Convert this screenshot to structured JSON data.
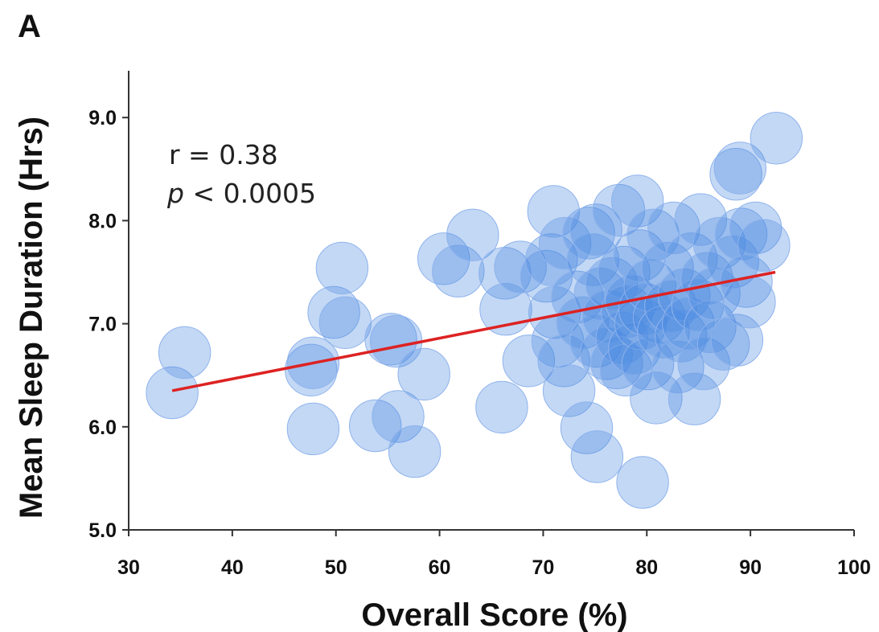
{
  "panel_label": "A",
  "annotation": {
    "r_line": "r = 0.38",
    "p_symbol": "p",
    "p_rest": " < 0.0005"
  },
  "colors": {
    "bubble_fill": "#4a8ae0",
    "bubble_stroke": "#8fb3ec",
    "trend_line": "#dd2222",
    "axis": "#333333"
  },
  "chart_data": {
    "type": "scatter",
    "title": "",
    "xlabel": "Overall Score (%)",
    "ylabel": "Mean Sleep Duration (Hrs)",
    "xlim": [
      30,
      100
    ],
    "ylim": [
      5.0,
      9.5
    ],
    "xticks": [
      30,
      40,
      50,
      60,
      70,
      80,
      90,
      100
    ],
    "xtick_labels": [
      "30",
      "40",
      "50",
      "60",
      "70",
      "80",
      "90",
      "100"
    ],
    "yticks": [
      5.0,
      6.0,
      7.0,
      8.0,
      9.0
    ],
    "ytick_labels": [
      "5.0",
      "6.0",
      "7.0",
      "8.0",
      "9.0"
    ],
    "grid": false,
    "legend": "none",
    "marker_size_data_units_x": 5,
    "points": [
      {
        "x": 34.2,
        "y": 6.33
      },
      {
        "x": 35.4,
        "y": 6.72
      },
      {
        "x": 47.6,
        "y": 6.55
      },
      {
        "x": 47.8,
        "y": 6.62
      },
      {
        "x": 47.8,
        "y": 5.98
      },
      {
        "x": 49.8,
        "y": 7.11
      },
      {
        "x": 50.6,
        "y": 7.54
      },
      {
        "x": 50.9,
        "y": 7.01
      },
      {
        "x": 53.8,
        "y": 6.01
      },
      {
        "x": 55.3,
        "y": 6.85
      },
      {
        "x": 55.8,
        "y": 6.83
      },
      {
        "x": 56.0,
        "y": 6.1
      },
      {
        "x": 57.6,
        "y": 5.76
      },
      {
        "x": 58.5,
        "y": 6.51
      },
      {
        "x": 60.4,
        "y": 7.63
      },
      {
        "x": 61.8,
        "y": 7.51
      },
      {
        "x": 63.2,
        "y": 7.86
      },
      {
        "x": 66.0,
        "y": 6.19
      },
      {
        "x": 66.3,
        "y": 7.49
      },
      {
        "x": 66.4,
        "y": 7.14
      },
      {
        "x": 67.8,
        "y": 7.55
      },
      {
        "x": 68.6,
        "y": 6.64
      },
      {
        "x": 70.3,
        "y": 7.46
      },
      {
        "x": 70.8,
        "y": 7.62
      },
      {
        "x": 71.0,
        "y": 8.09
      },
      {
        "x": 71.1,
        "y": 7.11
      },
      {
        "x": 71.4,
        "y": 6.83
      },
      {
        "x": 72.0,
        "y": 6.64
      },
      {
        "x": 72.1,
        "y": 7.78
      },
      {
        "x": 72.5,
        "y": 6.35
      },
      {
        "x": 73.3,
        "y": 7.26
      },
      {
        "x": 73.8,
        "y": 7.01
      },
      {
        "x": 74.2,
        "y": 5.99
      },
      {
        "x": 74.4,
        "y": 7.88
      },
      {
        "x": 74.8,
        "y": 7.62
      },
      {
        "x": 75.1,
        "y": 7.91
      },
      {
        "x": 75.1,
        "y": 6.83
      },
      {
        "x": 75.2,
        "y": 5.71
      },
      {
        "x": 75.5,
        "y": 7.29
      },
      {
        "x": 76.1,
        "y": 6.71
      },
      {
        "x": 76.3,
        "y": 7.07
      },
      {
        "x": 76.6,
        "y": 7.39
      },
      {
        "x": 77.1,
        "y": 6.62
      },
      {
        "x": 77.3,
        "y": 8.1
      },
      {
        "x": 77.6,
        "y": 6.86
      },
      {
        "x": 77.8,
        "y": 7.5
      },
      {
        "x": 78.0,
        "y": 6.55
      },
      {
        "x": 78.1,
        "y": 7.12
      },
      {
        "x": 78.5,
        "y": 7.22
      },
      {
        "x": 78.8,
        "y": 6.76
      },
      {
        "x": 79.1,
        "y": 8.19
      },
      {
        "x": 79.3,
        "y": 7.66
      },
      {
        "x": 79.4,
        "y": 7.0
      },
      {
        "x": 79.6,
        "y": 5.46
      },
      {
        "x": 79.8,
        "y": 7.14
      },
      {
        "x": 80.1,
        "y": 6.61
      },
      {
        "x": 80.3,
        "y": 7.37
      },
      {
        "x": 80.6,
        "y": 7.86
      },
      {
        "x": 80.9,
        "y": 6.28
      },
      {
        "x": 81.2,
        "y": 7.06
      },
      {
        "x": 81.6,
        "y": 6.92
      },
      {
        "x": 82.0,
        "y": 7.54
      },
      {
        "x": 82.3,
        "y": 7.17
      },
      {
        "x": 82.6,
        "y": 7.93
      },
      {
        "x": 83.0,
        "y": 6.58
      },
      {
        "x": 83.3,
        "y": 6.88
      },
      {
        "x": 83.6,
        "y": 7.28
      },
      {
        "x": 84.0,
        "y": 7.0
      },
      {
        "x": 84.3,
        "y": 7.63
      },
      {
        "x": 84.6,
        "y": 6.27
      },
      {
        "x": 84.9,
        "y": 7.18
      },
      {
        "x": 85.2,
        "y": 8.01
      },
      {
        "x": 85.5,
        "y": 6.61
      },
      {
        "x": 85.8,
        "y": 7.44
      },
      {
        "x": 86.1,
        "y": 6.97
      },
      {
        "x": 86.5,
        "y": 7.29
      },
      {
        "x": 87.0,
        "y": 7.78
      },
      {
        "x": 87.4,
        "y": 6.8
      },
      {
        "x": 88.3,
        "y": 7.6
      },
      {
        "x": 88.6,
        "y": 8.45
      },
      {
        "x": 88.7,
        "y": 6.84
      },
      {
        "x": 89.0,
        "y": 8.51
      },
      {
        "x": 89.1,
        "y": 7.87
      },
      {
        "x": 89.6,
        "y": 7.41
      },
      {
        "x": 89.9,
        "y": 7.21
      },
      {
        "x": 90.5,
        "y": 7.93
      },
      {
        "x": 91.3,
        "y": 7.76
      },
      {
        "x": 92.5,
        "y": 8.8
      }
    ],
    "trend_line": {
      "x": [
        34.2,
        92.4
      ],
      "y": [
        6.35,
        7.5
      ]
    }
  }
}
